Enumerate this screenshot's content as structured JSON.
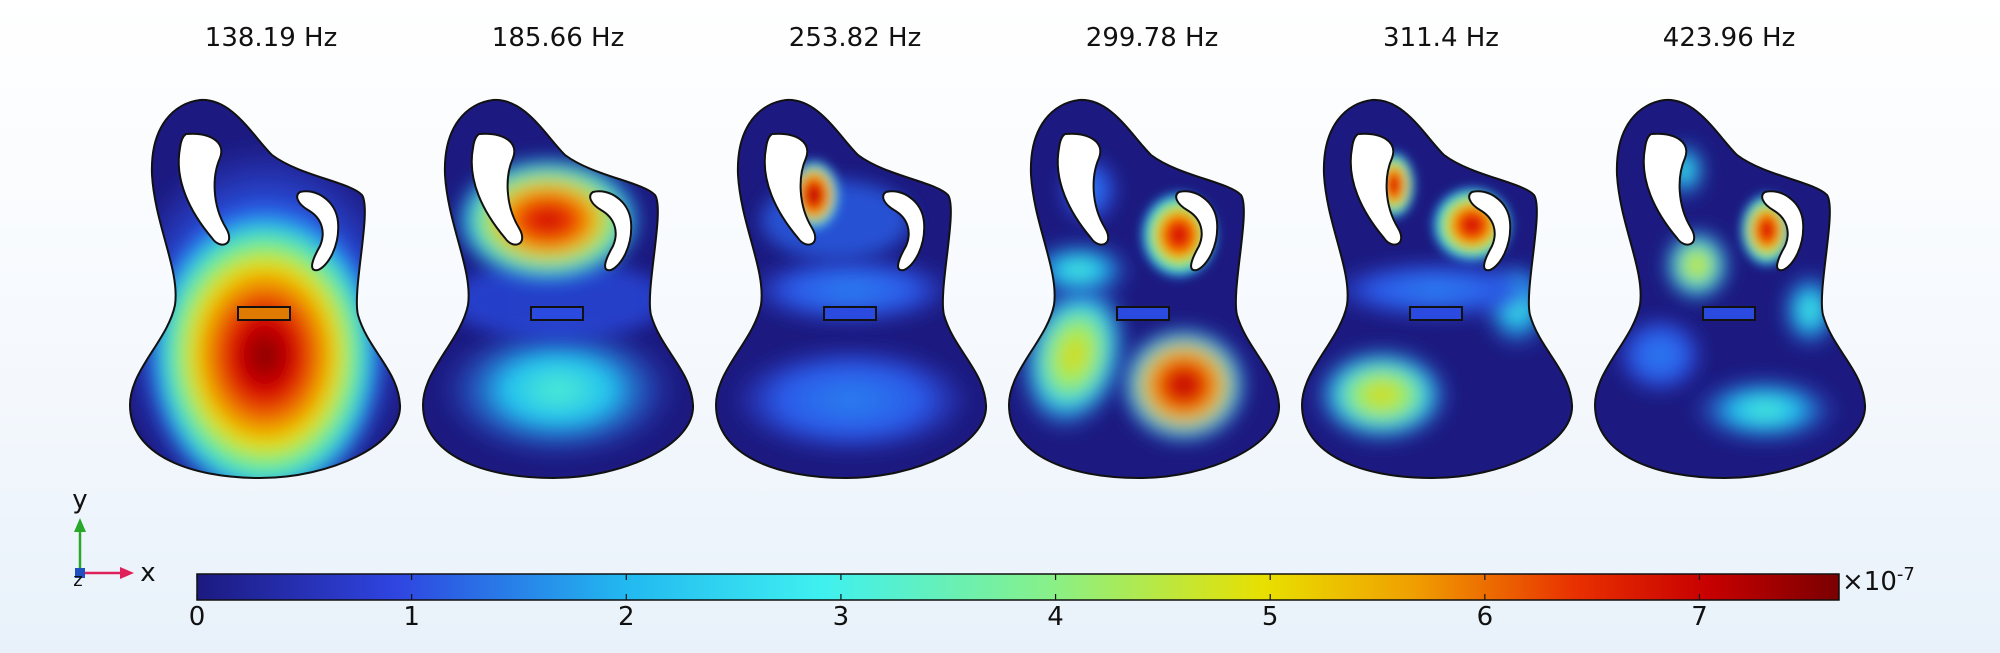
{
  "modes": [
    {
      "label": "138.19 Hz"
    },
    {
      "label": "185.66 Hz"
    },
    {
      "label": "253.82 Hz"
    },
    {
      "label": "299.78 Hz"
    },
    {
      "label": "311.4 Hz"
    },
    {
      "label": "423.96 Hz"
    }
  ],
  "colorbar": {
    "ticks": [
      "0",
      "1",
      "2",
      "3",
      "4",
      "5",
      "6",
      "7"
    ],
    "multiplier": "×10",
    "exponent": "-7",
    "min": 0,
    "max": 7.65,
    "colors": [
      "#1c1a80",
      "#2f44e0",
      "#22b8f0",
      "#3ff0f0",
      "#88f088",
      "#e8e000",
      "#f0a000",
      "#e83000",
      "#c80000",
      "#7a0000"
    ]
  },
  "axes": {
    "x": "x",
    "y": "y",
    "z": "z"
  },
  "axis_colors": {
    "x": "#e0205a",
    "y": "#28a828",
    "z": "#2050c0"
  }
}
